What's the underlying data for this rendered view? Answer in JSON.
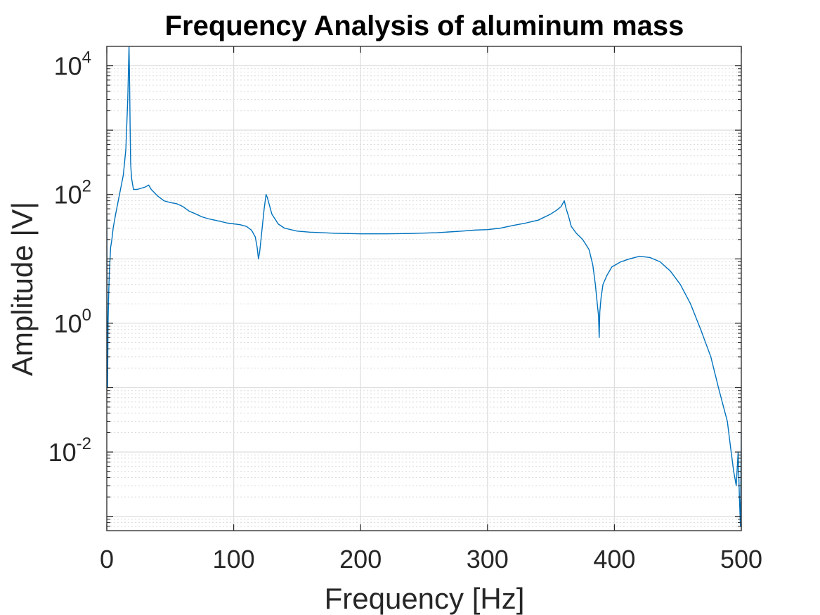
{
  "chart_data": {
    "type": "line",
    "title": "Frequency Analysis of aluminum mass",
    "xlabel": "Frequency [Hz]",
    "ylabel": "Amplitude |V|",
    "xlim": [
      0,
      500
    ],
    "ylim": [
      0.0006,
      20000
    ],
    "yscale": "log",
    "grid": true,
    "minor_grid": true,
    "line_color": "#0072BD",
    "x_ticks": [
      0,
      100,
      200,
      300,
      400,
      500
    ],
    "y_ticks": [
      {
        "value": 0.01,
        "base": "10",
        "exp": "-2"
      },
      {
        "value": 1,
        "base": "10",
        "exp": "0"
      },
      {
        "value": 100,
        "base": "10",
        "exp": "2"
      },
      {
        "value": 10000,
        "base": "10",
        "exp": "4"
      }
    ],
    "series": [
      {
        "x": [
          0,
          0.3,
          0.6,
          1,
          1.5,
          2,
          3,
          4,
          5,
          7,
          10,
          13,
          15,
          16.5,
          17.5,
          18,
          18.4,
          18.8,
          19.5,
          21,
          24,
          27,
          30,
          33,
          35,
          40,
          45,
          50,
          55,
          60,
          65,
          70,
          75,
          80,
          85,
          90,
          95,
          100,
          105,
          110,
          114,
          117,
          118.5,
          119.5,
          120.5,
          122,
          124,
          125.5,
          126.5,
          128,
          130,
          135,
          140,
          150,
          160,
          170,
          180,
          200,
          220,
          240,
          260,
          280,
          290,
          300,
          310,
          320,
          330,
          340,
          350,
          355,
          358,
          360.5,
          362,
          364,
          366,
          370,
          375,
          380,
          383,
          385,
          386.5,
          387.5,
          388,
          388.5,
          389.5,
          391,
          394,
          398,
          405,
          412,
          420,
          428,
          436,
          444,
          452,
          460,
          468,
          476,
          482,
          486,
          489,
          492,
          494,
          496,
          497.5,
          498.5,
          499.3,
          500
        ],
        "y": [
          50,
          0.5,
          0.1,
          1.0,
          3.0,
          6,
          15,
          20,
          30,
          50,
          100,
          200,
          500,
          3000,
          20000,
          5000,
          1000,
          300,
          180,
          120,
          120,
          125,
          130,
          140,
          120,
          95,
          80,
          75,
          72,
          65,
          55,
          50,
          45,
          42,
          40,
          38,
          36,
          35,
          34,
          32,
          28,
          22,
          15,
          10,
          13,
          25,
          60,
          100,
          90,
          70,
          50,
          35,
          30,
          27,
          26,
          25.5,
          25,
          24.5,
          24.5,
          24.8,
          25.5,
          27,
          28,
          28.5,
          30,
          33,
          36,
          40,
          50,
          58,
          65,
          80,
          60,
          45,
          32,
          25,
          20,
          14,
          8,
          4,
          2,
          1.3,
          0.6,
          1.5,
          2.5,
          4,
          5.5,
          7.5,
          9,
          10,
          11,
          10.5,
          9,
          6.5,
          4,
          2,
          0.8,
          0.3,
          0.1,
          0.05,
          0.03,
          0.01,
          0.005,
          0.003,
          0.01,
          0.002,
          0.0007,
          0.02
        ]
      }
    ]
  }
}
